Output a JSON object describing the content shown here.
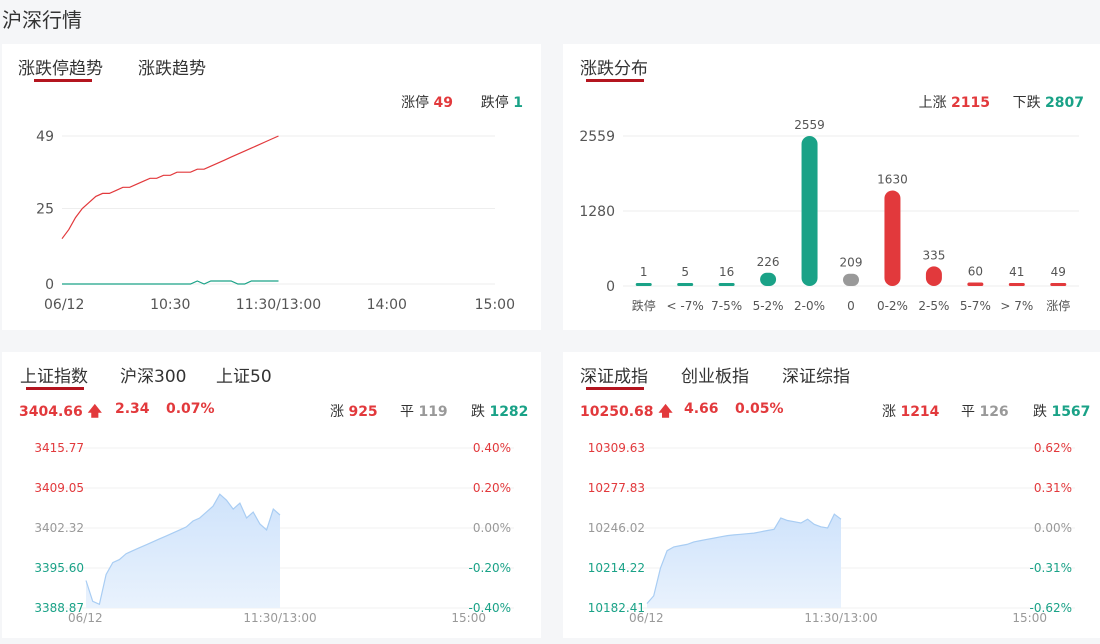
{
  "page_title": "沪深行情",
  "limit_card": {
    "tabs": [
      "涨跌停趋势",
      "涨跌趋势"
    ],
    "limit_up_label": "涨停",
    "limit_up_value": "49",
    "limit_down_label": "跌停",
    "limit_down_value": "1"
  },
  "dist_card": {
    "tabs": [
      "涨跌分布"
    ],
    "up_label": "上涨",
    "up_value": "2115",
    "down_label": "下跌",
    "down_value": "2807"
  },
  "sh_card": {
    "tabs": [
      "上证指数",
      "沪深300",
      "上证50"
    ],
    "price": "3404.66",
    "change": "2.34",
    "pct": "0.07%",
    "up_label": "涨",
    "up_value": "925",
    "flat_label": "平",
    "flat_value": "119",
    "down_label": "跌",
    "down_value": "1282"
  },
  "sz_card": {
    "tabs": [
      "深证成指",
      "创业板指",
      "深证综指"
    ],
    "price": "10250.68",
    "change": "4.66",
    "pct": "0.05%",
    "up_label": "涨",
    "up_value": "1214",
    "flat_label": "平",
    "flat_value": "126",
    "down_label": "跌",
    "down_value": "1567"
  },
  "colors": {
    "up": "#e2393c",
    "down": "#1aa287",
    "flat": "#999999",
    "accent": "#b4151f"
  },
  "chart_data": [
    {
      "type": "line",
      "name": "limit-trend",
      "x_ticks": [
        "06/12",
        "10:30",
        "11:30/13:00",
        "14:00",
        "15:00"
      ],
      "y_ticks": [
        "49",
        "25",
        "0"
      ],
      "ylim": [
        0,
        49
      ],
      "session_fraction_shown": 0.5,
      "series": [
        {
          "values": [
            15,
            18,
            22,
            25,
            27,
            29,
            30,
            30,
            31,
            32,
            32,
            33,
            34,
            35,
            35,
            36,
            36,
            37,
            37,
            37,
            38,
            38,
            39,
            40,
            41,
            42,
            43,
            44,
            45,
            46,
            47,
            48,
            49
          ]
        },
        {
          "values": [
            0,
            0,
            0,
            0,
            0,
            0,
            0,
            0,
            0,
            0,
            0,
            0,
            0,
            0,
            0,
            0,
            0,
            0,
            0,
            0,
            1,
            0,
            1,
            1,
            1,
            1,
            0,
            0,
            1,
            1,
            1,
            1,
            1
          ]
        }
      ]
    },
    {
      "type": "bar",
      "name": "distribution",
      "categories": [
        "跌停",
        "< -7%",
        "7-5%",
        "5-2%",
        "2-0%",
        "0",
        "0-2%",
        "2-5%",
        "5-7%",
        "> 7%",
        "涨停"
      ],
      "values": [
        1,
        5,
        16,
        226,
        2559,
        209,
        1630,
        335,
        60,
        41,
        49
      ],
      "bar_colors": [
        "#1aa287",
        "#1aa287",
        "#1aa287",
        "#1aa287",
        "#1aa287",
        "#999999",
        "#e2393c",
        "#e2393c",
        "#e2393c",
        "#e2393c",
        "#e2393c"
      ],
      "y_ticks": [
        "2559",
        "1280",
        "0"
      ],
      "ylim": [
        0,
        2559
      ]
    },
    {
      "type": "area",
      "name": "sh-index",
      "x_ticks": [
        "06/12",
        "11:30/13:00",
        "15:00"
      ],
      "y_ticks": [
        "3415.77",
        "3409.05",
        "3402.32",
        "3395.60",
        "3388.87"
      ],
      "pct_ticks": [
        "0.40%",
        "0.20%",
        "0.00%",
        "-0.20%",
        "-0.40%"
      ],
      "ylim": [
        3388.87,
        3415.77
      ],
      "session_fraction_shown": 0.5,
      "values": [
        3393.5,
        3390.0,
        3389.5,
        3394.5,
        3396.5,
        3397.0,
        3398.0,
        3398.5,
        3399.0,
        3399.5,
        3400.0,
        3400.5,
        3401.0,
        3401.5,
        3402.0,
        3402.5,
        3403.5,
        3404.0,
        3405.0,
        3406.0,
        3408.0,
        3407.0,
        3405.5,
        3406.5,
        3404.0,
        3405.0,
        3403.0,
        3402.0,
        3405.5,
        3404.5
      ]
    },
    {
      "type": "area",
      "name": "sz-index",
      "x_ticks": [
        "06/12",
        "11:30/13:00",
        "15:00"
      ],
      "y_ticks": [
        "10309.63",
        "10277.83",
        "10246.02",
        "10214.22",
        "10182.41"
      ],
      "pct_ticks": [
        "0.62%",
        "0.31%",
        "0.00%",
        "-0.31%",
        "-0.62%"
      ],
      "ylim": [
        10182.41,
        10309.63
      ],
      "session_fraction_shown": 0.5,
      "values": [
        10186.0,
        10192.0,
        10214.0,
        10228.0,
        10231.0,
        10232.0,
        10233.0,
        10235.0,
        10236.0,
        10237.0,
        10238.0,
        10239.0,
        10240.0,
        10240.5,
        10241.0,
        10241.5,
        10242.0,
        10243.0,
        10244.0,
        10245.0,
        10254.0,
        10252.0,
        10251.0,
        10250.0,
        10253.0,
        10249.0,
        10247.0,
        10246.0,
        10257.0,
        10253.0
      ]
    }
  ]
}
